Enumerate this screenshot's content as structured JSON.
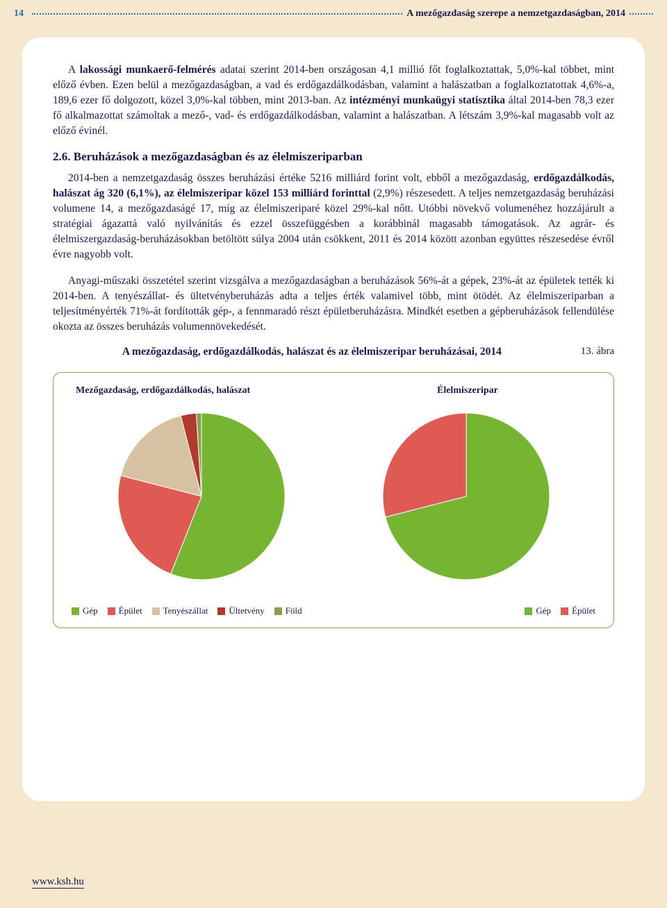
{
  "header": {
    "page_number": "14",
    "title": "A mezőgazdaság szerepe a nemzetgazdaságban, 2014"
  },
  "body": {
    "para1_pre": "A ",
    "para1_bold": "lakossági munkaerő-felmérés",
    "para1_post": " adatai szerint 2014-ben országosan 4,1 millió főt foglalkoztattak, 5,0%-kal többet, mint előző évben. Ezen belül a mezőgazdaságban, a vad és erdőgazdálkodásban, valamint a halászatban a foglalkoztatottak 4,6%-a, 189,6 ezer fő dolgozott, közel 3,0%-kal többen, mint 2013-ban. Az ",
    "para1_bold2": "intézményi munkaügyi statisztika",
    "para1_post2": " által 2014-ben 78,3 ezer fő alkalmazottat számoltak a mező-, vad- és erdőgazdálkodásban, valamint a halászatban. A létszám 3,9%-kal magasabb volt az előző évinél.",
    "section_heading": "2.6. Beruházások a mezőgazdaságban és az élelmiszeriparban",
    "para2_pre": "2014-ben a nemzetgazdaság összes beruházási értéke 5216 milliárd forint volt, ebből a mezőgazdaság, ",
    "para2_bold": "erdőgazdálkodás, halászat ág 320 (6,1%), az élelmiszeripar közel 153 milliárd forinttal",
    "para2_post": " (2,9%) részesedett. A teljes nemzetgazdaság beruházási volumene 14, a mezőgazdaságé 17, míg az élelmiszeriparé közel 29%-kal nőtt. Utóbbi növekvő volumenéhez hozzájárult a stratégiai ágazattá való nyilvánítás és ezzel összefüggésben a korábbinál magasabb támogatások. Az agrár- és élelmiszergazdaság-beruházásokban betöltött súlya 2004 után csökkent, 2011 és 2014 között azonban együttes részesedése évről évre nagyobb volt.",
    "para3": "Anyagi-műszaki összetétel szerint vizsgálva a mezőgazdaságban a beruházások 56%-át a gépek, 23%-át az épületek tették ki 2014-ben. A tenyészállat- és ültetvényberuházás adta a teljes érték valamivel több, mint ötödét. Az élelmiszeriparban a teljesítményérték 71%-át fordították gép-, a fennmaradó részt épületberuházásra. Mindkét esetben a gépberuházások fellendülése okozta az összes beruházás volumennövekedését."
  },
  "figure": {
    "number": "13. ábra",
    "caption": "A mezőgazdaság, erdőgazdálkodás, halászat és az élelmiszeripar beruházásai, 2014",
    "left_title": "Mezőgazdaság, erdőgazdálkodás, halászat",
    "right_title": "Élelmiszeripar",
    "pie_radius": 120,
    "left_pie": {
      "type": "pie",
      "slices": [
        {
          "label": "Gép",
          "value": 56,
          "color": "#76b531"
        },
        {
          "label": "Épület",
          "value": 23,
          "color": "#df5a52"
        },
        {
          "label": "Tenyészállat",
          "value": 17,
          "color": "#d6c1a3"
        },
        {
          "label": "Ültetvény",
          "value": 3,
          "color": "#b03a2e"
        },
        {
          "label": "Föld",
          "value": 1,
          "color": "#8aa04a"
        }
      ]
    },
    "right_pie": {
      "type": "pie",
      "slices": [
        {
          "label": "Gép",
          "value": 71,
          "color": "#76b531"
        },
        {
          "label": "Épület",
          "value": 29,
          "color": "#df5a52"
        }
      ]
    },
    "legend_left": [
      {
        "label": "Gép",
        "color": "#76b531"
      },
      {
        "label": "Épület",
        "color": "#df5a52"
      },
      {
        "label": "Tenyészállat",
        "color": "#d6c1a3"
      },
      {
        "label": "Ültetvény",
        "color": "#b03a2e"
      },
      {
        "label": "Föld",
        "color": "#8aa04a"
      }
    ],
    "legend_right": [
      {
        "label": "Gép",
        "color": "#76b531"
      },
      {
        "label": "Épület",
        "color": "#df5a52"
      }
    ]
  },
  "footer": {
    "link": "www.ksh.hu"
  }
}
